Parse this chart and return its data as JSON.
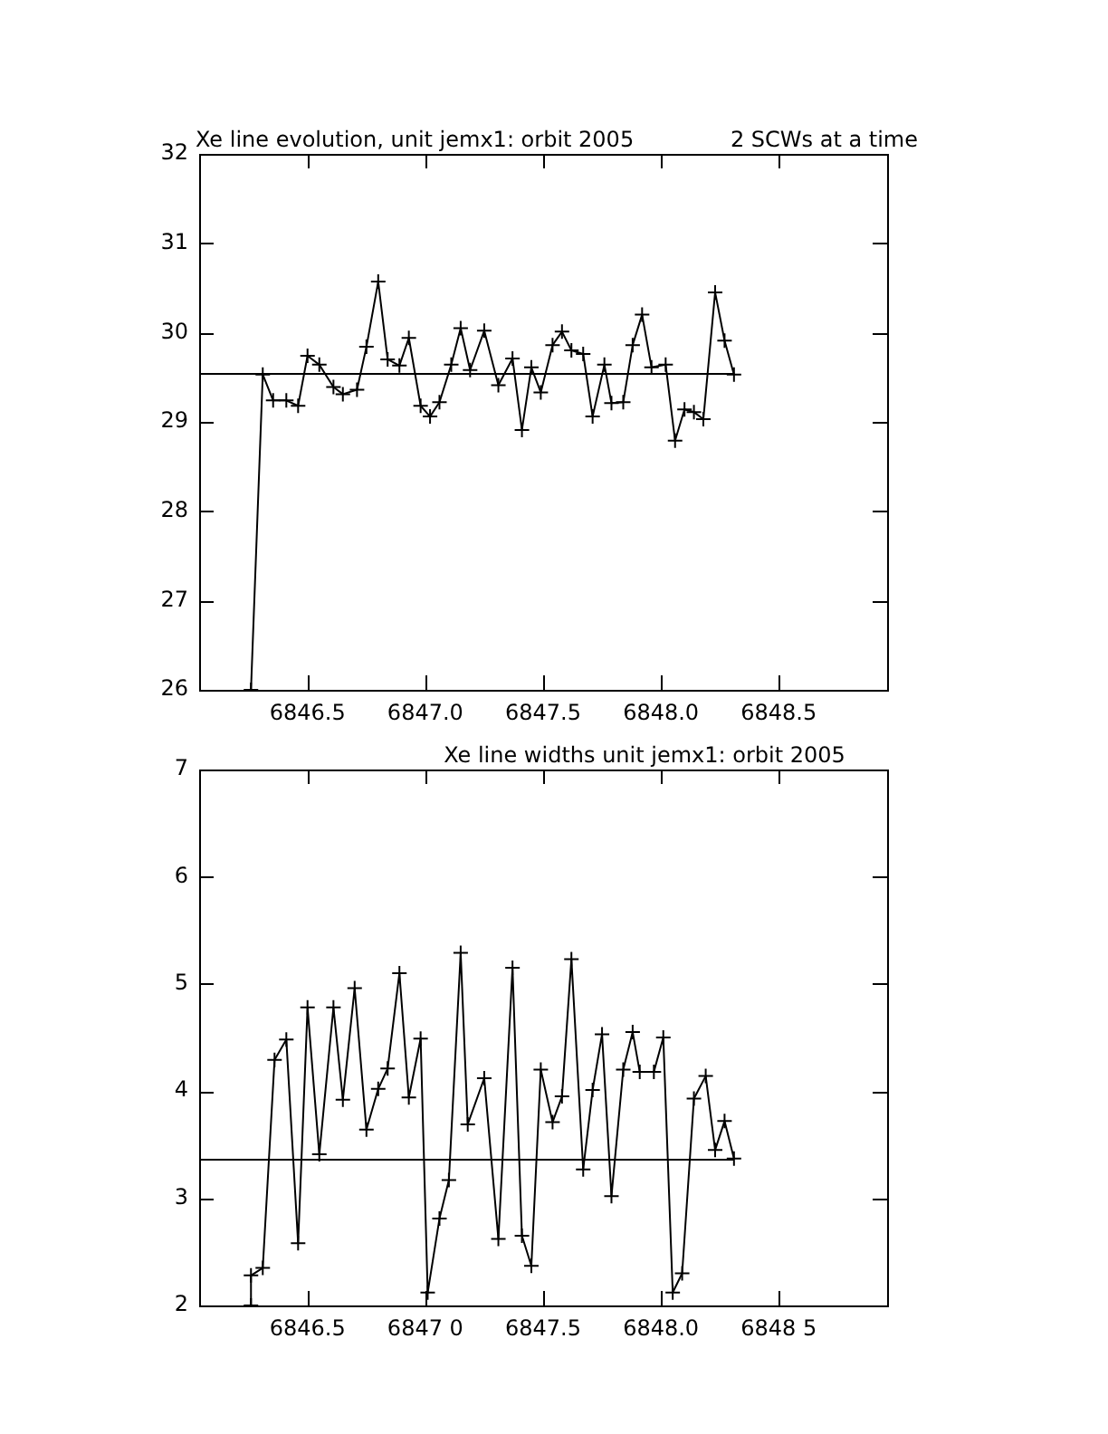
{
  "chart_data": [
    {
      "type": "line",
      "title": "Xe line evolution, unit jemx1: orbit 2005",
      "subtitle": "2 SCWs at a time",
      "color": "#000000",
      "marker": "cross",
      "line_style": "solid",
      "x": [
        6846.26,
        6846.31,
        6846.354,
        6846.41,
        6846.46,
        6846.5,
        6846.55,
        6846.61,
        6846.65,
        6846.71,
        6846.75,
        6846.8,
        6846.84,
        6846.89,
        6846.93,
        6846.98,
        6847.02,
        6847.06,
        6847.11,
        6847.15,
        6847.19,
        6847.25,
        6847.31,
        6847.37,
        6847.41,
        6847.45,
        6847.49,
        6847.54,
        6847.58,
        6847.62,
        6847.67,
        6847.71,
        6847.76,
        6847.79,
        6847.84,
        6847.88,
        6847.92,
        6847.96,
        6848.02,
        6848.06,
        6848.1,
        6848.14,
        6848.18,
        6848.23,
        6848.27,
        6848.31
      ],
      "values": [
        26,
        29.53,
        29.24,
        29.24,
        29.18,
        29.74,
        29.64,
        29.39,
        29.31,
        29.36,
        29.84,
        30.57,
        29.7,
        29.63,
        29.94,
        29.18,
        29.06,
        29.22,
        29.64,
        30.05,
        29.58,
        30.02,
        29.41,
        29.71,
        28.91,
        29.61,
        29.33,
        29.86,
        30.01,
        29.8,
        29.76,
        29.06,
        29.64,
        29.21,
        29.22,
        29.86,
        30.2,
        29.61,
        29.64,
        28.79,
        29.14,
        29.11,
        29.03,
        30.45,
        29.91,
        29.53
      ],
      "xlim": [
        6846.04,
        6848.96
      ],
      "xticks": [
        6846.5,
        {
          "value": 6847,
          "label": "6847.0"
        },
        6847.5,
        {
          "value": 6848,
          "label": "6848.0"
        },
        6848.5
      ],
      "ylim": [
        26,
        32
      ],
      "yticks": [
        26,
        27,
        28,
        29,
        30,
        31,
        32
      ],
      "ref_lines": [
        {
          "axis": "y",
          "value": 29.54,
          "color": "#000000"
        }
      ]
    },
    {
      "type": "line",
      "title": "Xe line widths unit jemx1: orbit 2005",
      "color": "#000000",
      "marker": "cross",
      "line_style": "solid",
      "x": [
        6846.26,
        6846.26,
        6846.31,
        6846.36,
        6846.41,
        6846.46,
        6846.5,
        6846.55,
        6846.61,
        6846.65,
        6846.7,
        6846.75,
        6846.8,
        6846.84,
        6846.89,
        6846.93,
        6846.98,
        6847.01,
        6847.06,
        6847.1,
        6847.15,
        6847.18,
        6847.25,
        6847.31,
        6847.37,
        6847.41,
        6847.45,
        6847.49,
        6847.54,
        6847.58,
        6847.62,
        6847.67,
        6847.71,
        6847.75,
        6847.79,
        6847.84,
        6847.88,
        6847.91,
        6847.97,
        6848.01,
        6848.05,
        6848.09,
        6848.14,
        6848.19,
        6848.23,
        6848.27,
        6848.31
      ],
      "values": [
        2,
        2.28,
        2.35,
        4.29,
        4.48,
        2.58,
        4.78,
        3.41,
        4.78,
        3.92,
        4.96,
        3.64,
        4.02,
        4.21,
        5.1,
        3.94,
        4.49,
        2.12,
        2.81,
        3.17,
        5.29,
        3.69,
        4.12,
        2.62,
        5.15,
        2.65,
        2.37,
        4.2,
        3.71,
        3.95,
        5.23,
        3.27,
        4.01,
        4.53,
        3.02,
        4.2,
        4.55,
        4.18,
        4.18,
        4.5,
        2.12,
        2.3,
        3.93,
        4.14,
        3.45,
        3.72,
        3.37
      ],
      "xlim": [
        6846.04,
        6848.96
      ],
      "xticks": [
        6846.5,
        {
          "value": 6847,
          "label": "6847 0"
        },
        6847.5,
        {
          "value": 6848,
          "label": "6848.0"
        },
        {
          "value": 6848.5,
          "label": "6848 5"
        }
      ],
      "ylim": [
        2,
        7
      ],
      "yticks": [
        2,
        3,
        4,
        5,
        6,
        7
      ],
      "ref_lines": [
        {
          "axis": "y",
          "value": 3.37,
          "color": "#000000"
        }
      ]
    }
  ]
}
